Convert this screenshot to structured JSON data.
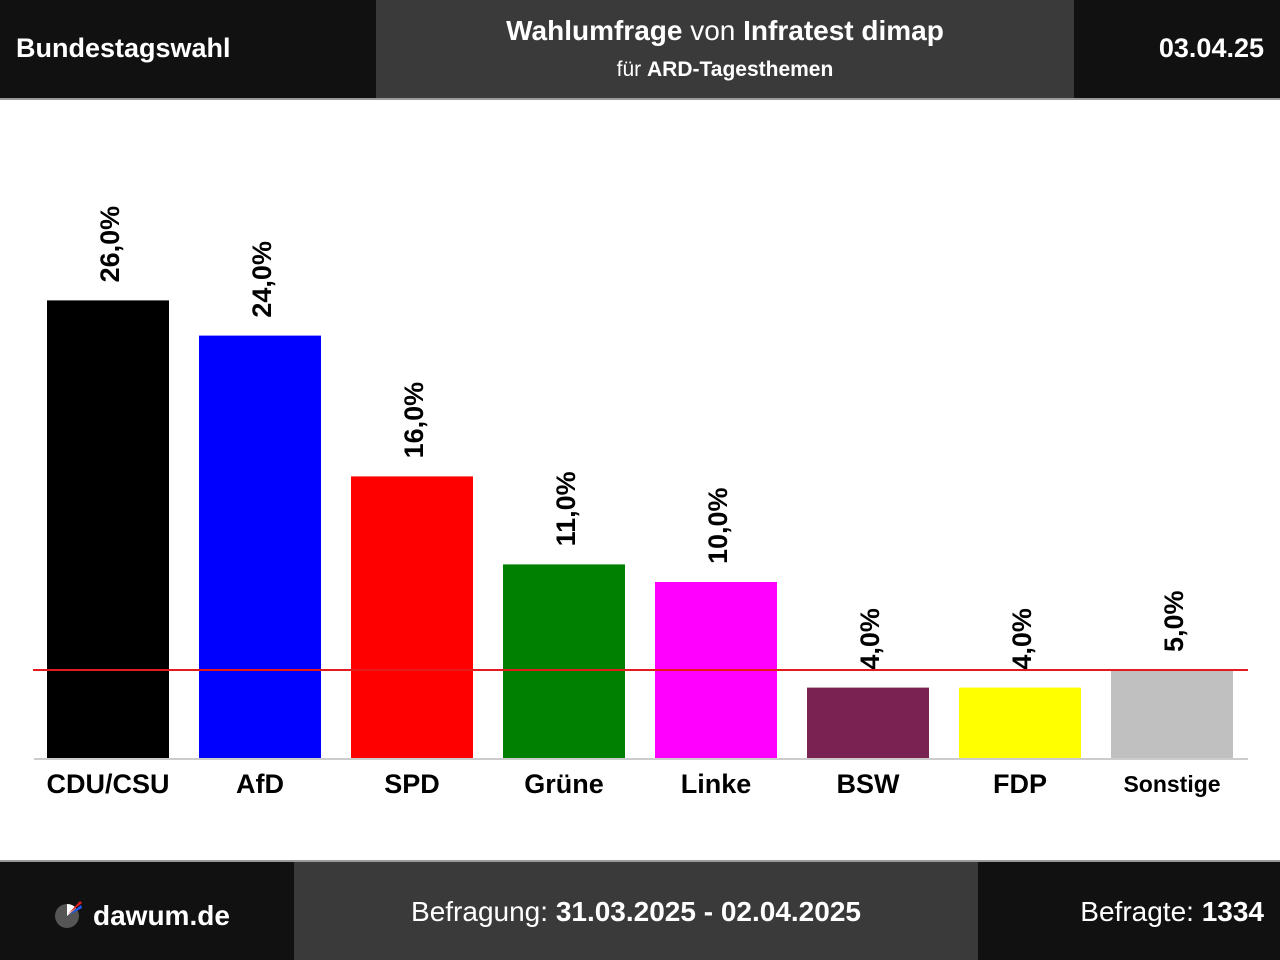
{
  "header": {
    "left": "Bundestagswahl",
    "title_bold_1": "Wahlumfrage",
    "title_plain": " von ",
    "title_bold_2": "Infratest dimap",
    "subtitle_plain": "für ",
    "subtitle_bold": "ARD-Tagesthemen",
    "date": "03.04.25"
  },
  "chart_data": {
    "type": "bar",
    "categories": [
      "CDU/CSU",
      "AfD",
      "SPD",
      "Grüne",
      "Linke",
      "BSW",
      "FDP",
      "Sonstige"
    ],
    "values": [
      26.0,
      24.0,
      16.0,
      11.0,
      10.0,
      4.0,
      4.0,
      5.0
    ],
    "value_labels": [
      "26,0%",
      "24,0%",
      "16,0%",
      "11,0%",
      "10,0%",
      "4,0%",
      "4,0%",
      "5,0%"
    ],
    "colors": [
      "#000000",
      "#0000ff",
      "#ff0000",
      "#008000",
      "#ff00ff",
      "#7a2352",
      "#ffff00",
      "#c0c0c0"
    ],
    "threshold": 5,
    "threshold_color": "#e41a1c",
    "ylim": [
      0,
      26
    ],
    "grid": false,
    "title": "",
    "xlabel": "",
    "ylabel": ""
  },
  "footer": {
    "brand": "dawum.de",
    "survey_label": "Befragung: ",
    "survey_period": "31.03.2025 - 02.04.2025",
    "respondents_label": "Befragte: ",
    "respondents": "1334"
  }
}
